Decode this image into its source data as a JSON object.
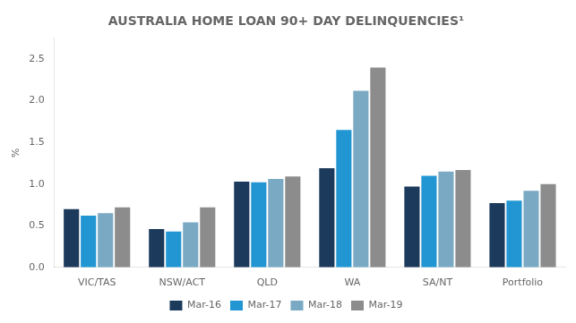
{
  "chart_data": {
    "type": "bar",
    "title": "AUSTRALIA HOME LOAN 90+ DAY DELINQUENCIES¹",
    "ylabel": "%",
    "categories": [
      "VIC/TAS",
      "NSW/ACT",
      "QLD",
      "WA",
      "SA/NT",
      "Portfolio"
    ],
    "series": [
      {
        "name": "Mar-16",
        "color": "#1b3a5c",
        "values": [
          0.7,
          0.46,
          1.03,
          1.19,
          0.97,
          0.77
        ]
      },
      {
        "name": "Mar-17",
        "color": "#2196d3",
        "values": [
          0.62,
          0.43,
          1.02,
          1.65,
          1.1,
          0.8
        ]
      },
      {
        "name": "Mar-18",
        "color": "#7aa9c4",
        "values": [
          0.65,
          0.54,
          1.06,
          2.12,
          1.15,
          0.92
        ]
      },
      {
        "name": "Mar-19",
        "color": "#8c8c8c",
        "values": [
          0.72,
          0.72,
          1.09,
          2.4,
          1.17,
          1.0
        ]
      }
    ],
    "ylim": [
      0,
      2.75
    ],
    "yticks": [
      {
        "value": 0,
        "label": "0.0"
      },
      0.5,
      {
        "value": 1,
        "label": "1.0"
      },
      1.5,
      {
        "value": 2,
        "label": "2.0"
      },
      2.5
    ],
    "grid": false,
    "legend": "bottom"
  }
}
